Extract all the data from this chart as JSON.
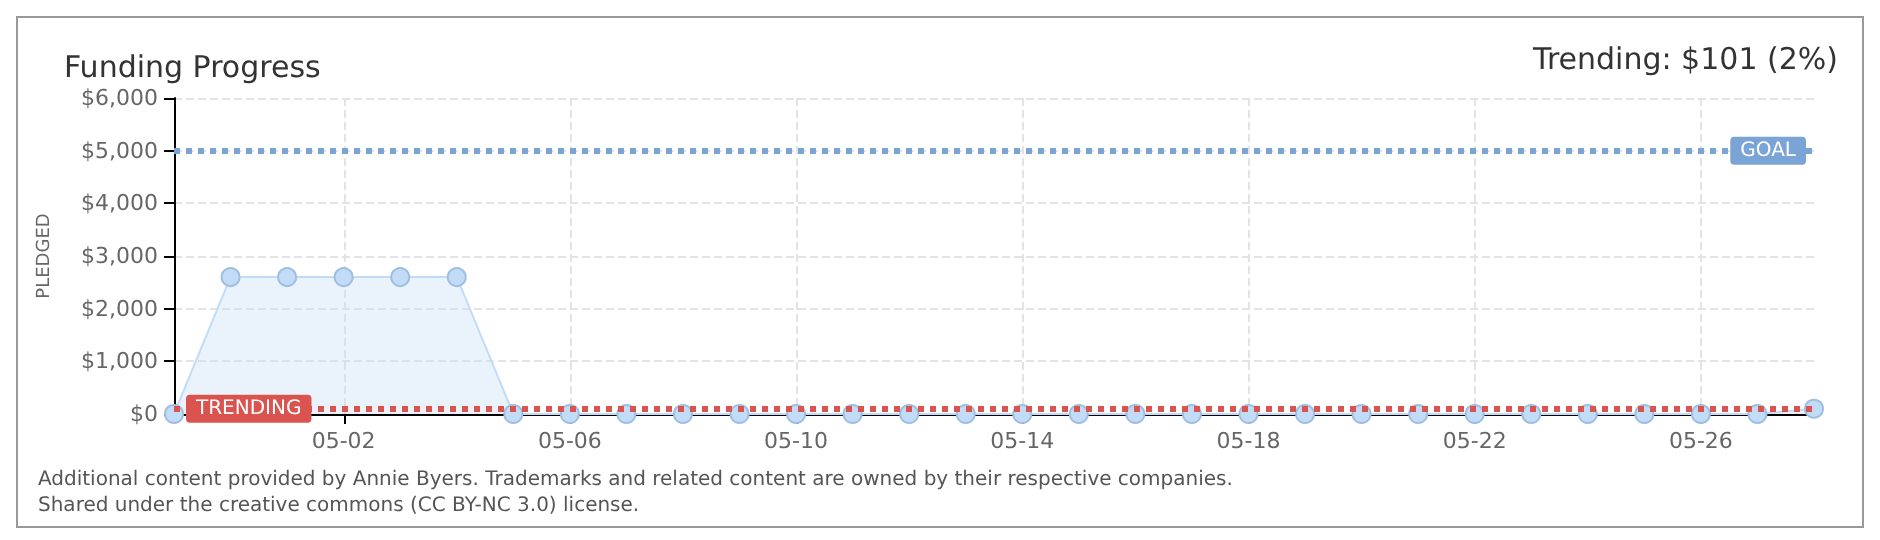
{
  "chart_data": {
    "type": "area",
    "title": "Funding Progress",
    "ylabel": "PLEDGED",
    "annotations": [
      "Trending: $101 (2%)",
      "Additional content provided by Annie Byers. Trademarks and related content are owned by their respective companies.",
      "Shared under the creative commons (CC BY-NC 3.0) license."
    ],
    "x": [
      "--04-29",
      "--04-30",
      "--05-01",
      "--05-02",
      "--05-03",
      "--05-04",
      "--05-05",
      "--05-06",
      "--05-07",
      "--05-08",
      "--05-09",
      "--05-10",
      "--05-11",
      "--05-12",
      "--05-13",
      "--05-14",
      "--05-15",
      "--05-16",
      "--05-17",
      "--05-18",
      "--05-19",
      "--05-20",
      "--05-21",
      "--05-22",
      "--05-23",
      "--05-24",
      "--05-25",
      "--05-26",
      "--05-27",
      "--05-28"
    ],
    "series": [
      {
        "color": "#c2dcf7",
        "values": [
          0,
          2600,
          2600,
          2600,
          2600,
          2600,
          0,
          0,
          0,
          0,
          0,
          0,
          0,
          0,
          0,
          0,
          0,
          0,
          0,
          0,
          0,
          0,
          0,
          0,
          0,
          0,
          0,
          0,
          0,
          100
        ]
      }
    ],
    "xlim": [
      "--04-29",
      "--05-28"
    ],
    "xticks": [
      {
        "value": "--05-02",
        "label": "05-02"
      },
      {
        "value": "--05-06",
        "label": "05-06"
      },
      {
        "value": "--05-10",
        "label": "05-10"
      },
      {
        "value": "--05-14",
        "label": "05-14"
      },
      {
        "value": "--05-18",
        "label": "05-18"
      },
      {
        "value": "--05-22",
        "label": "05-22"
      },
      {
        "value": "--05-26",
        "label": "05-26"
      }
    ],
    "ylim": [
      0,
      6000
    ],
    "yticks": [
      {
        "value": 0,
        "label": "$0"
      },
      {
        "value": 1000,
        "label": "$1,000"
      },
      {
        "value": 2000,
        "label": "$2,000"
      },
      {
        "value": 3000,
        "label": "$3,000"
      },
      {
        "value": 4000,
        "label": "$4,000"
      },
      {
        "value": 5000,
        "label": "$5,000"
      },
      {
        "value": 6000,
        "label": "$6,000"
      }
    ],
    "ref_lines": [
      {
        "axis": "y",
        "value": 5000,
        "label": "GOAL",
        "color": "#7aa3d6",
        "line_style": "dotted"
      },
      {
        "axis": "y",
        "value": 101,
        "label": "TRENDING",
        "color": "#d9534f",
        "line_style": "dotted"
      }
    ],
    "grid": true,
    "marker": "circle",
    "line_style": "solid"
  }
}
